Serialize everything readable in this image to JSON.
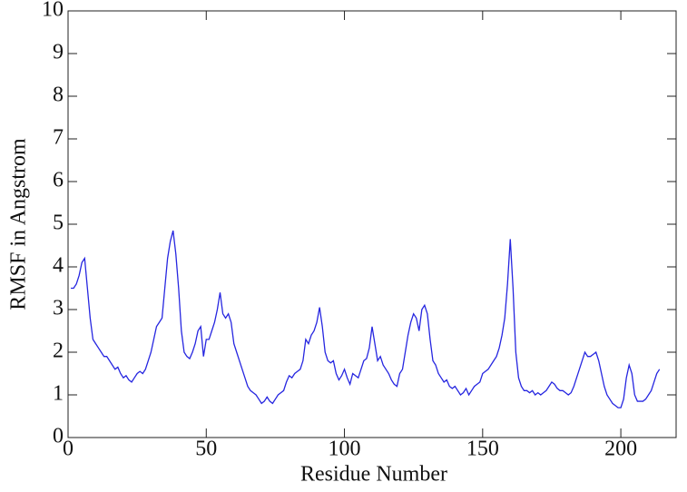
{
  "chart_data": {
    "type": "line",
    "xlabel": "Residue Number",
    "ylabel": "RMSF in Angstrom",
    "xlim": [
      0,
      220
    ],
    "ylim": [
      0,
      10
    ],
    "xticks": [
      0,
      50,
      100,
      150,
      200
    ],
    "yticks": [
      0,
      1,
      2,
      3,
      4,
      5,
      6,
      7,
      8,
      9,
      10
    ],
    "x": [
      1,
      2,
      3,
      4,
      5,
      6,
      7,
      8,
      9,
      10,
      11,
      12,
      13,
      14,
      15,
      16,
      17,
      18,
      19,
      20,
      21,
      22,
      23,
      24,
      25,
      26,
      27,
      28,
      29,
      30,
      31,
      32,
      33,
      34,
      35,
      36,
      37,
      38,
      39,
      40,
      41,
      42,
      43,
      44,
      45,
      46,
      47,
      48,
      49,
      50,
      51,
      52,
      53,
      54,
      55,
      56,
      57,
      58,
      59,
      60,
      61,
      62,
      63,
      64,
      65,
      66,
      67,
      68,
      69,
      70,
      71,
      72,
      73,
      74,
      75,
      76,
      77,
      78,
      79,
      80,
      81,
      82,
      83,
      84,
      85,
      86,
      87,
      88,
      89,
      90,
      91,
      92,
      93,
      94,
      95,
      96,
      97,
      98,
      99,
      100,
      101,
      102,
      103,
      104,
      105,
      106,
      107,
      108,
      109,
      110,
      111,
      112,
      113,
      114,
      115,
      116,
      117,
      118,
      119,
      120,
      121,
      122,
      123,
      124,
      125,
      126,
      127,
      128,
      129,
      130,
      131,
      132,
      133,
      134,
      135,
      136,
      137,
      138,
      139,
      140,
      141,
      142,
      143,
      144,
      145,
      146,
      147,
      148,
      149,
      150,
      151,
      152,
      153,
      154,
      155,
      156,
      157,
      158,
      159,
      160,
      161,
      162,
      163,
      164,
      165,
      166,
      167,
      168,
      169,
      170,
      171,
      172,
      173,
      174,
      175,
      176,
      177,
      178,
      179,
      180,
      181,
      182,
      183,
      184,
      185,
      186,
      187,
      188,
      189,
      190,
      191,
      192,
      193,
      194,
      195,
      196,
      197,
      198,
      199,
      200,
      201,
      202,
      203,
      204,
      205,
      206,
      207,
      208,
      209,
      210,
      211,
      212,
      213,
      214
    ],
    "series": [
      {
        "color": "#2626e0",
        "values": [
          3.5,
          3.5,
          3.6,
          3.8,
          4.1,
          4.2,
          3.5,
          2.8,
          2.3,
          2.2,
          2.1,
          2.0,
          1.9,
          1.9,
          1.8,
          1.7,
          1.6,
          1.65,
          1.5,
          1.4,
          1.45,
          1.35,
          1.3,
          1.4,
          1.5,
          1.55,
          1.5,
          1.6,
          1.8,
          2.0,
          2.3,
          2.6,
          2.7,
          2.8,
          3.5,
          4.2,
          4.6,
          4.85,
          4.3,
          3.5,
          2.5,
          2.0,
          1.9,
          1.85,
          2.0,
          2.2,
          2.5,
          2.6,
          1.9,
          2.3,
          2.3,
          2.5,
          2.7,
          3.0,
          3.4,
          2.9,
          2.8,
          2.9,
          2.7,
          2.2,
          2.0,
          1.8,
          1.6,
          1.4,
          1.2,
          1.1,
          1.05,
          1.0,
          0.9,
          0.8,
          0.85,
          0.95,
          0.85,
          0.8,
          0.9,
          1.0,
          1.05,
          1.1,
          1.3,
          1.45,
          1.4,
          1.5,
          1.55,
          1.6,
          1.8,
          2.3,
          2.2,
          2.4,
          2.5,
          2.7,
          3.05,
          2.6,
          2.0,
          1.8,
          1.75,
          1.8,
          1.5,
          1.35,
          1.45,
          1.6,
          1.4,
          1.25,
          1.5,
          1.45,
          1.4,
          1.6,
          1.8,
          1.85,
          2.1,
          2.6,
          2.2,
          1.8,
          1.9,
          1.7,
          1.6,
          1.5,
          1.35,
          1.25,
          1.2,
          1.5,
          1.6,
          2.0,
          2.4,
          2.7,
          2.9,
          2.8,
          2.5,
          3.0,
          3.1,
          2.9,
          2.3,
          1.8,
          1.7,
          1.5,
          1.4,
          1.3,
          1.35,
          1.2,
          1.15,
          1.2,
          1.1,
          1.0,
          1.05,
          1.15,
          1.0,
          1.1,
          1.2,
          1.25,
          1.3,
          1.5,
          1.55,
          1.6,
          1.7,
          1.8,
          1.9,
          2.1,
          2.4,
          2.8,
          3.6,
          4.65,
          3.5,
          2.0,
          1.4,
          1.2,
          1.1,
          1.1,
          1.05,
          1.1,
          1.0,
          1.05,
          1.0,
          1.05,
          1.1,
          1.2,
          1.3,
          1.25,
          1.15,
          1.1,
          1.1,
          1.05,
          1.0,
          1.05,
          1.2,
          1.4,
          1.6,
          1.8,
          2.0,
          1.9,
          1.9,
          1.95,
          2.0,
          1.8,
          1.5,
          1.2,
          1.0,
          0.9,
          0.8,
          0.75,
          0.7,
          0.7,
          0.9,
          1.4,
          1.7,
          1.5,
          1.0,
          0.85,
          0.85,
          0.85,
          0.9,
          1.0,
          1.1,
          1.3,
          1.5,
          1.6
        ]
      }
    ]
  }
}
